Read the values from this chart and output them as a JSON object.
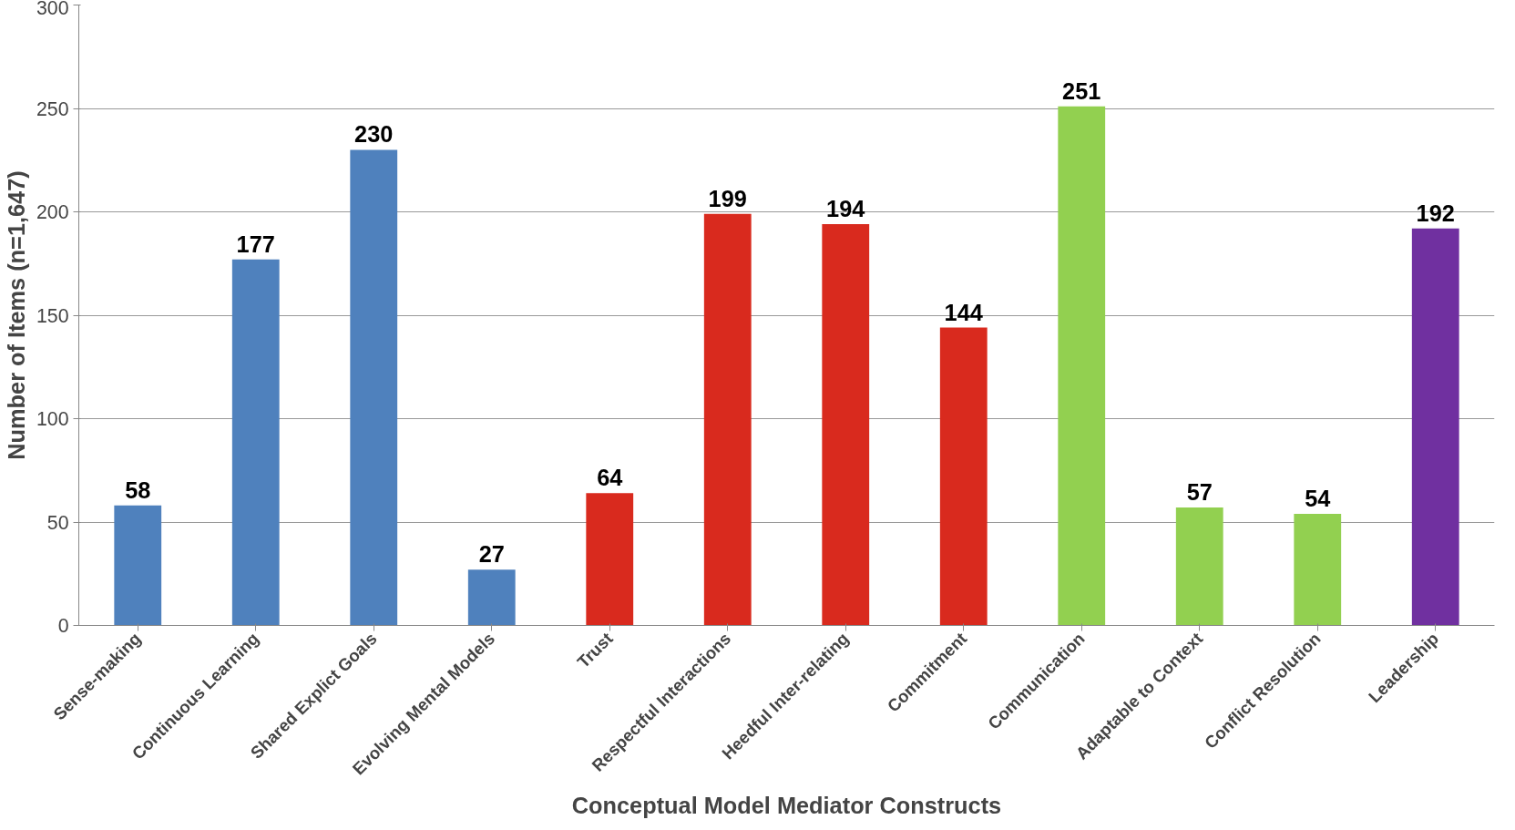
{
  "chart_data": {
    "type": "bar",
    "xlabel": "Conceptual Model Mediator Constructs",
    "ylabel": "Number of Items (n=1,647)",
    "categories": [
      "Sense-making",
      "Continuous Learning",
      "Shared Explict Goals",
      "Evolving Mental Models",
      "Trust",
      "Respectful Interactions",
      "Heedful Inter-relating",
      "Commitment",
      "Communication",
      "Adaptable to Context",
      "Conflict Resolution",
      "Leadership"
    ],
    "values": [
      58,
      177,
      230,
      27,
      64,
      199,
      194,
      144,
      251,
      57,
      54,
      192
    ],
    "colors": [
      "#4f81bd",
      "#4f81bd",
      "#4f81bd",
      "#4f81bd",
      "#d92a1e",
      "#d92a1e",
      "#d92a1e",
      "#d92a1e",
      "#92d050",
      "#92d050",
      "#92d050",
      "#7030a0"
    ],
    "ylim": [
      0,
      300
    ],
    "yticks": [
      0,
      50,
      100,
      150,
      200,
      250,
      300
    ],
    "grid": "y",
    "data_labels": true
  }
}
